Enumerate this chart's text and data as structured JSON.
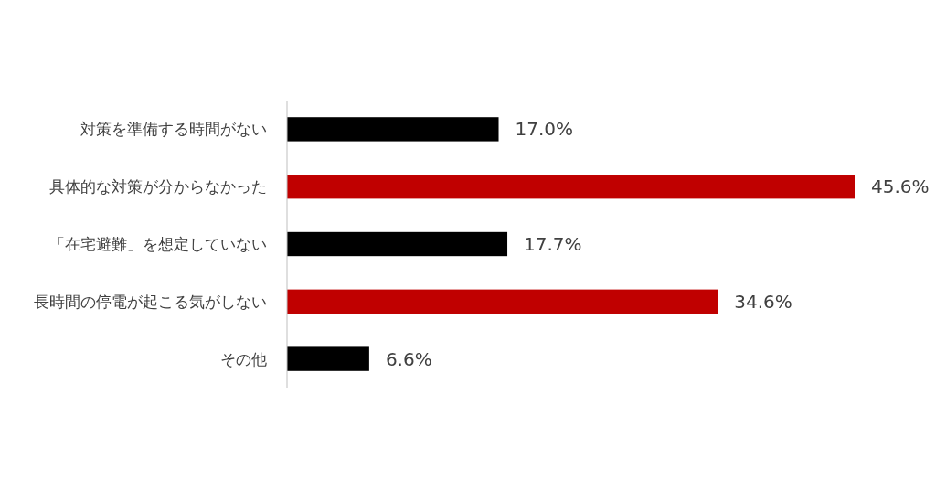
{
  "chart_data": {
    "type": "bar",
    "orientation": "horizontal",
    "categories": [
      "対策を準備する時間がない",
      "具体的な対策が分からなかった",
      "「在宅避難」を想定していない",
      "長時間の停電が起こる気がしない",
      "その他"
    ],
    "values": [
      17.0,
      45.6,
      17.7,
      34.6,
      6.6
    ],
    "colors": [
      "#000000",
      "#c00000",
      "#000000",
      "#c00000",
      "#000000"
    ],
    "value_labels": [
      "17.0%",
      "45.6%",
      "17.7%",
      "34.6%",
      "6.6%"
    ]
  }
}
